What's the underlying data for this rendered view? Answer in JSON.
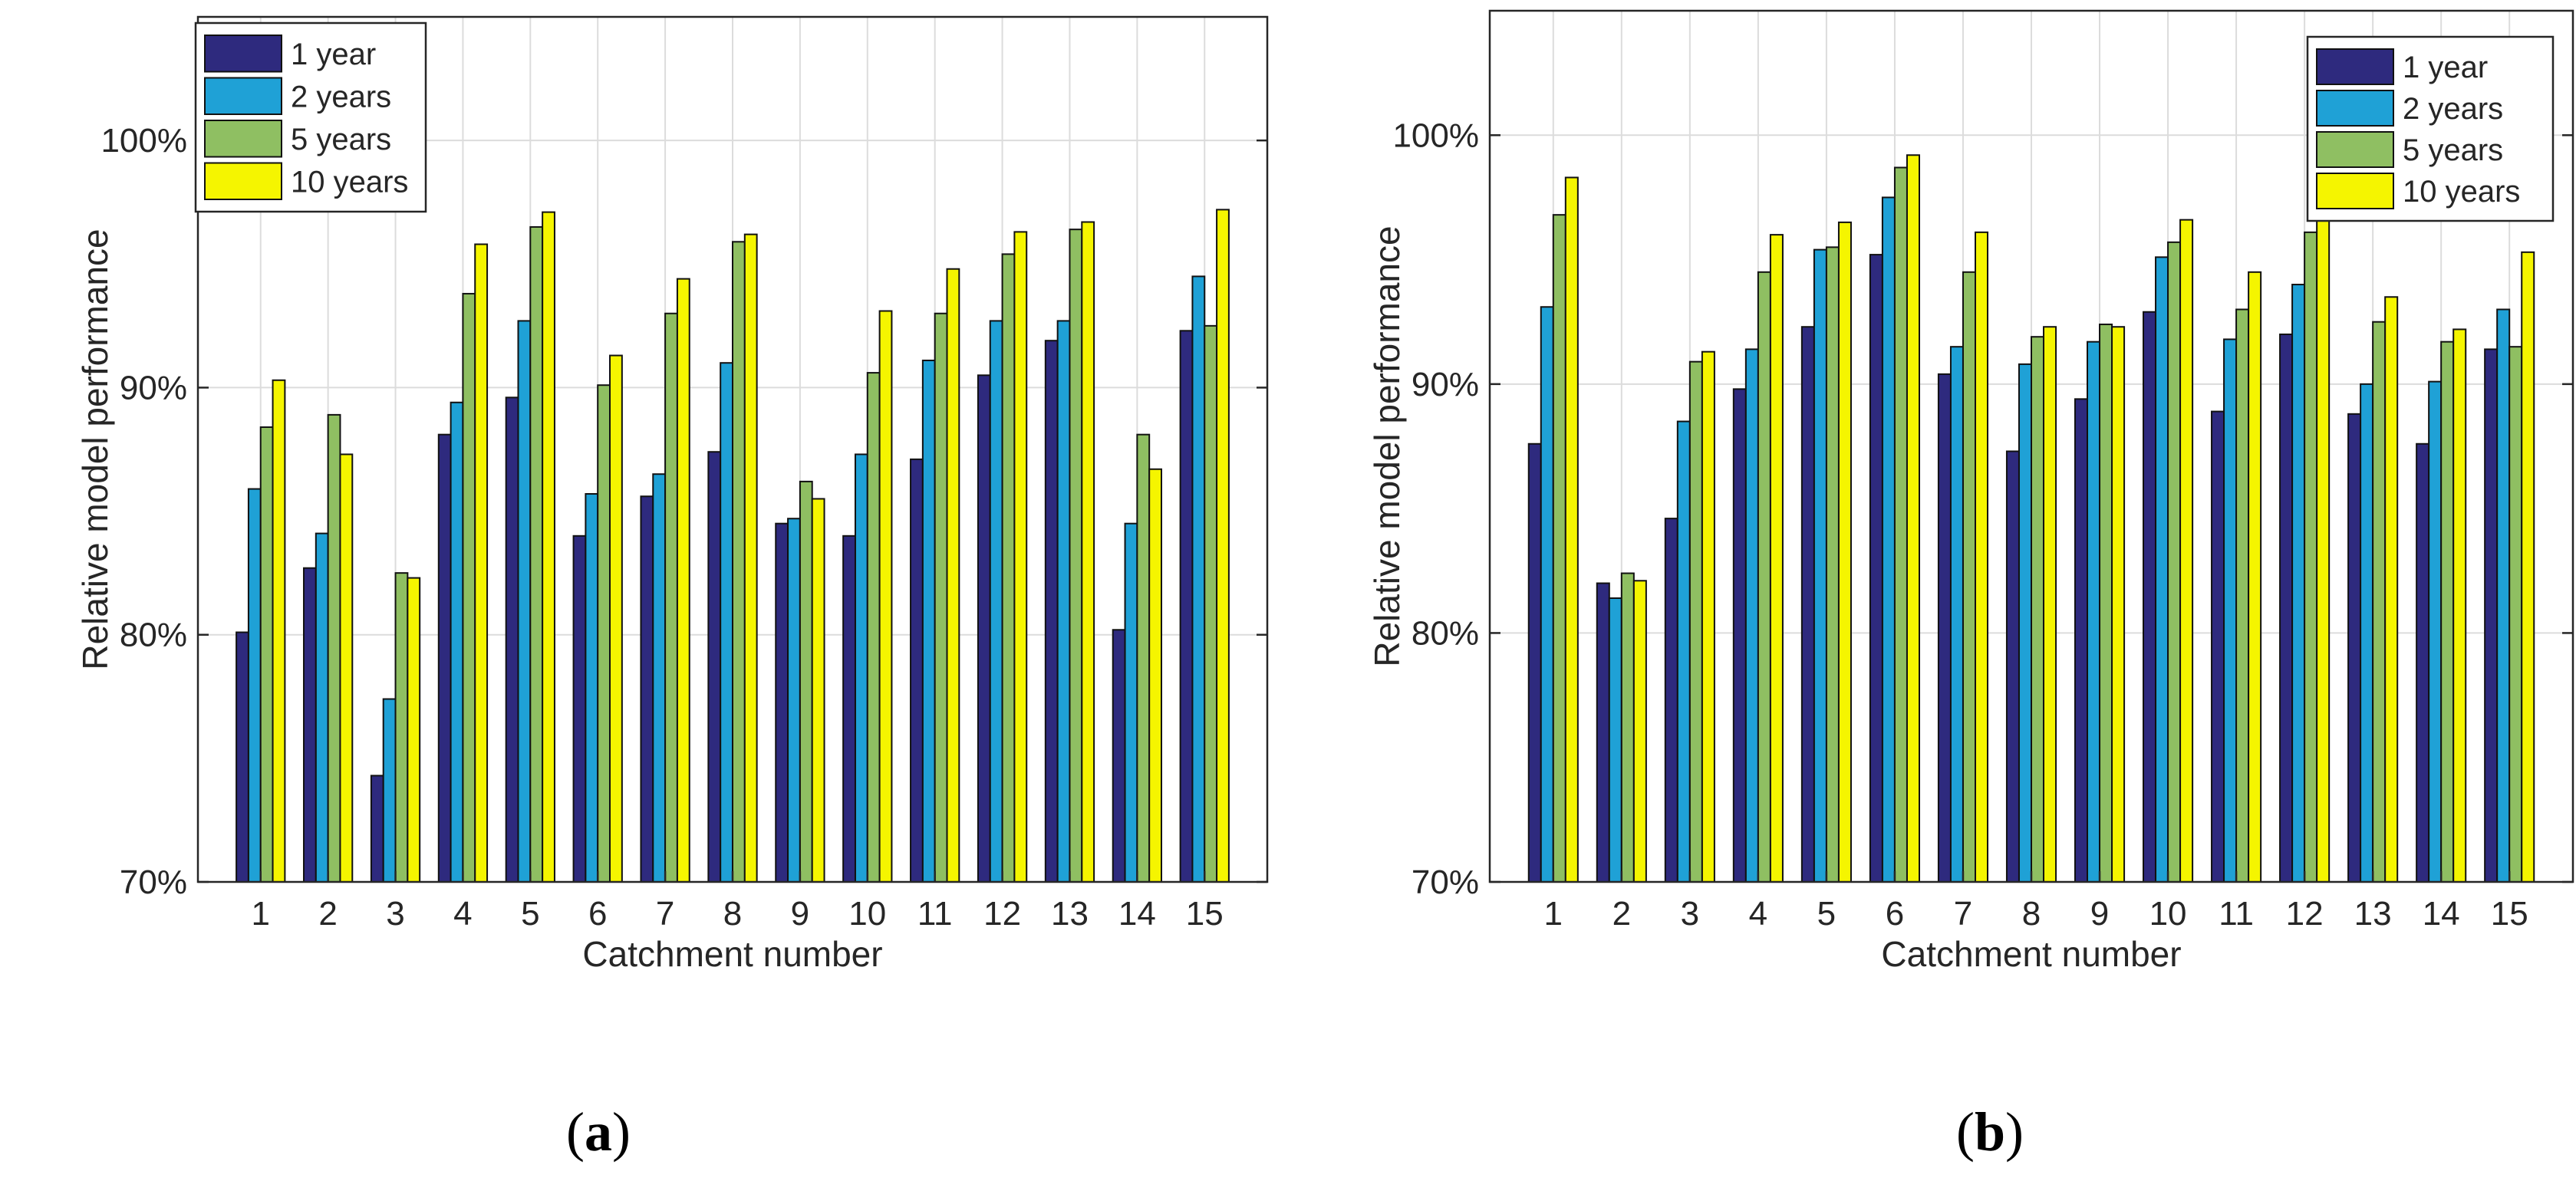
{
  "figure": {
    "panel_labels": [
      "a",
      "b"
    ]
  },
  "colors": {
    "series": [
      "#2e2a7e",
      "#1fa1d6",
      "#8fbf62",
      "#f5f500"
    ],
    "axis": "#262626",
    "grid": "#dcdcdc"
  },
  "chart_data": [
    {
      "type": "bar",
      "panel": "a",
      "title": "",
      "xlabel": "Catchment number",
      "ylabel": "Relative model performance",
      "ylim": [
        70,
        105
      ],
      "yticks": [
        70,
        80,
        90,
        100
      ],
      "ytick_labels": [
        "70%",
        "80%",
        "90%",
        "100%"
      ],
      "grid": true,
      "legend_position": "top-left",
      "categories": [
        "1",
        "2",
        "3",
        "4",
        "5",
        "6",
        "7",
        "8",
        "9",
        "10",
        "11",
        "12",
        "13",
        "14",
        "15"
      ],
      "series": [
        {
          "name": "1 year",
          "values": [
            80.1,
            82.7,
            74.3,
            88.1,
            89.6,
            84.0,
            85.6,
            87.4,
            84.5,
            84.0,
            87.1,
            90.5,
            91.9,
            80.2,
            92.3
          ]
        },
        {
          "name": "2 years",
          "values": [
            85.9,
            84.1,
            77.4,
            89.4,
            92.7,
            85.7,
            86.5,
            91.0,
            84.7,
            87.3,
            91.1,
            92.7,
            92.7,
            84.5,
            94.5
          ]
        },
        {
          "name": "5 years",
          "values": [
            88.4,
            88.9,
            82.5,
            93.8,
            96.5,
            90.1,
            93.0,
            95.9,
            86.2,
            90.6,
            93.0,
            95.4,
            96.4,
            88.1,
            92.5
          ]
        },
        {
          "name": "10 years",
          "values": [
            90.3,
            87.3,
            82.3,
            95.8,
            97.1,
            91.3,
            94.4,
            96.2,
            85.5,
            93.1,
            94.8,
            96.3,
            96.7,
            86.7,
            97.2
          ]
        }
      ]
    },
    {
      "type": "bar",
      "panel": "b",
      "title": "",
      "xlabel": "Catchment number",
      "ylabel": "Relative model performance",
      "ylim": [
        70,
        105
      ],
      "yticks": [
        70,
        80,
        90,
        100
      ],
      "ytick_labels": [
        "70%",
        "80%",
        "90%",
        "100%"
      ],
      "grid": true,
      "legend_position": "top-right",
      "categories": [
        "1",
        "2",
        "3",
        "4",
        "5",
        "6",
        "7",
        "8",
        "9",
        "10",
        "11",
        "12",
        "13",
        "14",
        "15"
      ],
      "series": [
        {
          "name": "1 year",
          "values": [
            87.6,
            82.0,
            84.6,
            89.8,
            92.3,
            95.2,
            90.4,
            87.3,
            89.4,
            92.9,
            88.9,
            92.0,
            88.8,
            87.6,
            91.4
          ]
        },
        {
          "name": "2 years",
          "values": [
            93.1,
            81.4,
            88.5,
            91.4,
            95.4,
            97.5,
            91.5,
            90.8,
            91.7,
            95.1,
            91.8,
            94.0,
            90.0,
            90.1,
            93.0
          ]
        },
        {
          "name": "5 years",
          "values": [
            96.8,
            82.4,
            90.9,
            94.5,
            95.5,
            98.7,
            94.5,
            91.9,
            92.4,
            95.7,
            93.0,
            96.1,
            92.5,
            91.7,
            91.5
          ]
        },
        {
          "name": "10 years",
          "values": [
            98.3,
            82.1,
            91.3,
            96.0,
            96.5,
            99.2,
            96.1,
            92.3,
            92.3,
            96.6,
            94.5,
            96.8,
            93.5,
            92.2,
            95.3
          ]
        }
      ]
    }
  ]
}
